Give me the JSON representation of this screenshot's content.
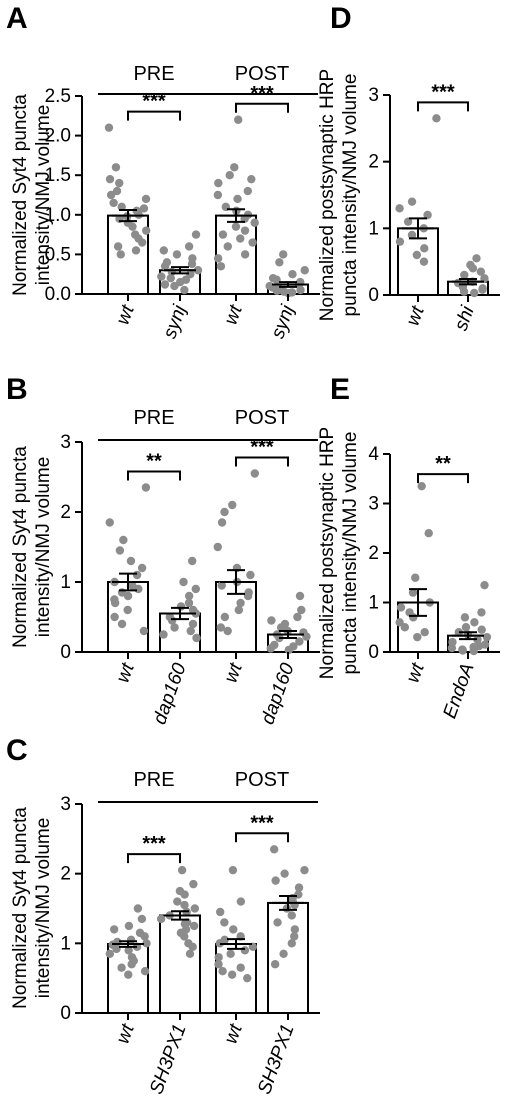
{
  "chart_data": [
    {
      "panel": "A",
      "type": "bar",
      "ylabel": [
        "Normalized Syt4 puncta",
        "intensity/NMJ volume"
      ],
      "ylim": [
        0,
        2.5
      ],
      "yticks": [
        "0.0",
        "0.5",
        "1.0",
        "1.5",
        "2.0",
        "2.5"
      ],
      "groups": [
        {
          "label": "PRE",
          "categories": [
            "wt",
            "synj"
          ],
          "means": [
            0.99,
            0.3
          ],
          "sem": [
            0.07,
            0.04
          ],
          "points": [
            [
              2.1,
              1.6,
              1.45,
              1.4,
              1.3,
              1.25,
              1.2,
              1.15,
              1.1,
              1.08,
              1.05,
              1.0,
              0.98,
              0.95,
              0.9,
              0.85,
              0.8,
              0.75,
              0.7,
              0.65,
              0.6,
              0.55,
              0.5
            ],
            [
              0.75,
              0.6,
              0.55,
              0.5,
              0.45,
              0.4,
              0.38,
              0.35,
              0.3,
              0.28,
              0.25,
              0.22,
              0.2,
              0.18,
              0.15,
              0.12,
              0.1,
              0.05
            ]
          ],
          "significance": "***"
        },
        {
          "label": "POST",
          "categories": [
            "wt",
            "synj"
          ],
          "means": [
            0.99,
            0.12
          ],
          "sem": [
            0.08,
            0.03
          ],
          "points": [
            [
              2.2,
              1.6,
              1.5,
              1.45,
              1.4,
              1.3,
              1.25,
              1.2,
              1.1,
              1.05,
              1.0,
              0.95,
              0.9,
              0.85,
              0.8,
              0.75,
              0.7,
              0.65,
              0.6,
              0.5,
              0.45,
              0.35
            ],
            [
              0.5,
              0.4,
              0.3,
              0.25,
              0.2,
              0.18,
              0.15,
              0.12,
              0.1,
              0.08,
              0.06,
              0.05,
              0.04,
              0.03,
              0.02,
              0.01
            ]
          ],
          "significance": "***"
        }
      ]
    },
    {
      "panel": "B",
      "type": "bar",
      "ylabel": [
        "Normalized Syt4 puncta",
        "intensity/NMJ volume"
      ],
      "ylim": [
        0,
        3
      ],
      "yticks": [
        "0",
        "1",
        "2",
        "3"
      ],
      "groups": [
        {
          "label": "PRE",
          "categories": [
            "wt",
            "dap160"
          ],
          "means": [
            1.0,
            0.55
          ],
          "sem": [
            0.12,
            0.08
          ],
          "points": [
            [
              2.35,
              1.85,
              1.6,
              1.45,
              1.3,
              1.2,
              1.1,
              1.0,
              0.95,
              0.9,
              0.85,
              0.8,
              0.75,
              0.7,
              0.6,
              0.5,
              0.4,
              0.3
            ],
            [
              1.3,
              1.0,
              0.9,
              0.8,
              0.7,
              0.65,
              0.6,
              0.55,
              0.5,
              0.45,
              0.4,
              0.35,
              0.3,
              0.25,
              0.2
            ]
          ],
          "significance": "**"
        },
        {
          "label": "POST",
          "categories": [
            "wt",
            "dap160"
          ],
          "means": [
            1.0,
            0.25
          ],
          "sem": [
            0.17,
            0.05
          ],
          "points": [
            [
              2.55,
              2.1,
              2.0,
              1.85,
              1.5,
              1.2,
              1.1,
              1.0,
              0.95,
              0.85,
              0.8,
              0.7,
              0.6,
              0.5,
              0.35,
              0.3
            ],
            [
              0.8,
              0.6,
              0.5,
              0.45,
              0.4,
              0.35,
              0.3,
              0.28,
              0.25,
              0.22,
              0.2,
              0.15,
              0.1,
              0.08,
              0.05,
              0.03
            ]
          ],
          "significance": "***"
        }
      ]
    },
    {
      "panel": "C",
      "type": "bar",
      "ylabel": [
        "Normalized Syt4 puncta",
        "intensity/NMJ volume"
      ],
      "ylim": [
        0,
        3
      ],
      "yticks": [
        "0",
        "1",
        "2",
        "3"
      ],
      "groups": [
        {
          "label": "PRE",
          "categories": [
            "wt",
            "SH3PX1"
          ],
          "means": [
            0.99,
            1.4
          ],
          "sem": [
            0.04,
            0.06
          ],
          "points": [
            [
              1.5,
              1.35,
              1.25,
              1.2,
              1.15,
              1.1,
              1.05,
              1.02,
              1.0,
              0.98,
              0.95,
              0.92,
              0.9,
              0.85,
              0.8,
              0.75,
              0.7,
              0.65,
              0.6,
              0.55
            ],
            [
              2.05,
              1.85,
              1.75,
              1.7,
              1.6,
              1.55,
              1.5,
              1.45,
              1.4,
              1.35,
              1.3,
              1.28,
              1.25,
              1.2,
              1.15,
              1.1,
              1.0,
              0.95,
              0.85
            ]
          ],
          "significance": "***"
        },
        {
          "label": "POST",
          "categories": [
            "wt",
            "SH3PX1"
          ],
          "means": [
            0.99,
            1.58
          ],
          "sem": [
            0.07,
            0.1
          ],
          "points": [
            [
              2.05,
              1.6,
              1.45,
              1.3,
              1.2,
              1.1,
              1.05,
              1.0,
              0.95,
              0.9,
              0.85,
              0.8,
              0.7,
              0.65,
              0.6,
              0.55,
              0.5
            ],
            [
              2.35,
              2.05,
              2.0,
              1.9,
              1.8,
              1.7,
              1.65,
              1.6,
              1.55,
              1.5,
              1.4,
              1.3,
              1.2,
              1.1,
              1.0,
              0.85,
              0.7
            ]
          ],
          "significance": "***"
        }
      ]
    },
    {
      "panel": "D",
      "type": "bar",
      "ylabel": [
        "Normalized postsynaptic HRP",
        "puncta intensity/NMJ volume"
      ],
      "ylim": [
        0,
        3
      ],
      "yticks": [
        "0",
        "1",
        "2",
        "3"
      ],
      "groups": [
        {
          "label": "",
          "categories": [
            "wt",
            "shi"
          ],
          "means": [
            1.0,
            0.2
          ],
          "sem": [
            0.15,
            0.04
          ],
          "points": [
            [
              2.65,
              1.4,
              1.3,
              1.2,
              1.1,
              1.0,
              0.9,
              0.8,
              0.7,
              0.6,
              0.5
            ],
            [
              0.55,
              0.45,
              0.4,
              0.35,
              0.3,
              0.25,
              0.2,
              0.18,
              0.15,
              0.12,
              0.1,
              0.08,
              0.05,
              0.03
            ]
          ],
          "significance": "***"
        }
      ]
    },
    {
      "panel": "E",
      "type": "bar",
      "ylabel": [
        "Normalized postsynaptic HRP",
        "puncta intensity/NMJ volume"
      ],
      "ylim": [
        0,
        4
      ],
      "yticks": [
        "0",
        "1",
        "2",
        "3",
        "4"
      ],
      "groups": [
        {
          "label": "",
          "categories": [
            "wt",
            "EndoA"
          ],
          "means": [
            1.0,
            0.33
          ],
          "sem": [
            0.27,
            0.07
          ],
          "points": [
            [
              3.35,
              2.4,
              1.5,
              1.2,
              1.0,
              0.9,
              0.8,
              0.7,
              0.6,
              0.5,
              0.4,
              0.3
            ],
            [
              1.35,
              0.8,
              0.7,
              0.6,
              0.5,
              0.45,
              0.4,
              0.35,
              0.3,
              0.25,
              0.2,
              0.15,
              0.12,
              0.1,
              0.08,
              0.05,
              0.03,
              0.02
            ]
          ],
          "significance": "**"
        }
      ]
    }
  ]
}
